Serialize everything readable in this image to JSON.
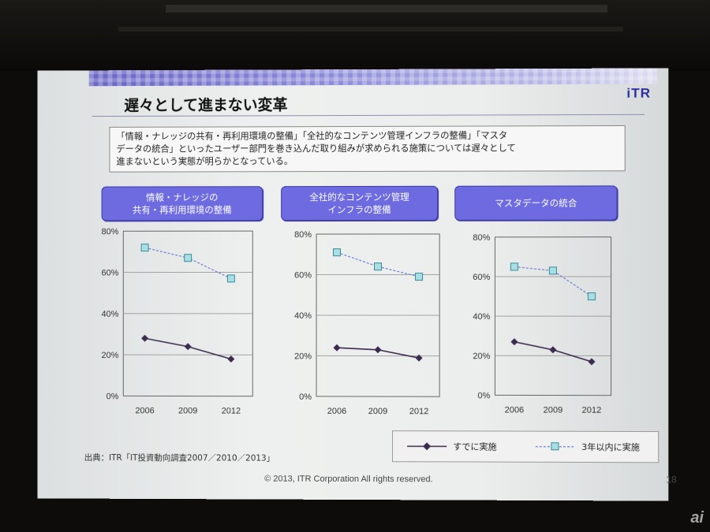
{
  "slide": {
    "brand": "iTR",
    "title": "遅々として進まない変革",
    "description_lines": [
      "「情報・ナレッジの共有・再利用環境の整備」「全社的なコンテンツ管理インフラの整備」「マスタ",
      "データの統合」といったユーザー部門を巻き込んだ取り組みが求められる施策については遅々として",
      "進まないという実態が明らかとなっている。"
    ],
    "source": "出典：ITR「IT投資動向調査2007／2010／2013」",
    "footer": "© 2013, ITR Corporation  All rights reserved.",
    "page_number": "18",
    "watermark": "ai"
  },
  "legend": {
    "items": [
      {
        "label": "すでに実施",
        "color": "#3b2b4e",
        "marker": "diamond"
      },
      {
        "label": "3年以内に実施",
        "color": "#7ab8c4",
        "marker": "square"
      }
    ]
  },
  "chart_data": [
    {
      "type": "line",
      "title": "情報・ナレッジの\n共有・再利用環境の整備",
      "categories": [
        "2006",
        "2009",
        "2012"
      ],
      "yticks": [
        "0%",
        "20%",
        "40%",
        "60%",
        "80%"
      ],
      "ylim": [
        0,
        80
      ],
      "grid": "horizontal",
      "series": [
        {
          "name": "すでに実施",
          "values": [
            28,
            24,
            18
          ]
        },
        {
          "name": "3年以内に実施",
          "values": [
            72,
            67,
            57
          ]
        }
      ]
    },
    {
      "type": "line",
      "title": "全社的なコンテンツ管理\nインフラの整備",
      "categories": [
        "2006",
        "2009",
        "2012"
      ],
      "yticks": [
        "0%",
        "20%",
        "40%",
        "60%",
        "80%"
      ],
      "ylim": [
        0,
        80
      ],
      "grid": "horizontal",
      "series": [
        {
          "name": "すでに実施",
          "values": [
            24,
            23,
            19
          ]
        },
        {
          "name": "3年以内に実施",
          "values": [
            71,
            64,
            59
          ]
        }
      ]
    },
    {
      "type": "line",
      "title": "マスタデータの統合",
      "categories": [
        "2006",
        "2009",
        "2012"
      ],
      "yticks": [
        "0%",
        "20%",
        "40%",
        "60%",
        "80%"
      ],
      "ylim": [
        0,
        80
      ],
      "grid": "horizontal",
      "series": [
        {
          "name": "すでに実施",
          "values": [
            27,
            23,
            17
          ]
        },
        {
          "name": "3年以内に実施",
          "values": [
            65,
            63,
            50
          ]
        }
      ]
    }
  ]
}
